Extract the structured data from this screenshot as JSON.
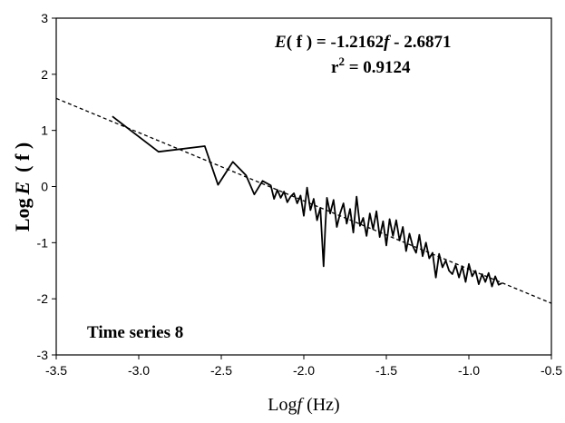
{
  "chart_data": {
    "type": "line",
    "xlim": [
      -3.5,
      -0.5
    ],
    "ylim": [
      -3,
      3
    ],
    "x_ticks": [
      -3.5,
      -3.0,
      -2.5,
      -2.0,
      -1.5,
      -1.0,
      -0.5
    ],
    "x_tick_labels": [
      "-3.5",
      "-3.0",
      "-2.5",
      "-2.0",
      "-1.5",
      "-1.0",
      "-0.5"
    ],
    "y_ticks": [
      -3,
      -2,
      -1,
      0,
      1,
      2,
      3
    ],
    "y_tick_labels": [
      "-3",
      "-2",
      "-1",
      "0",
      "1",
      "2",
      "3"
    ],
    "ylabel": {
      "prefix": "Log",
      "var": "E",
      "paren": "( f )"
    },
    "xlabel": {
      "prefix": "Log",
      "var": "f",
      "suffix": " (Hz)"
    },
    "annotation": {
      "equation": {
        "lhs_var": "E",
        "lhs_arg": "( f )",
        "rhs": " = -1.2162",
        "rhs_var": "f",
        "rhs_tail": "  - 2.6871"
      },
      "r2": {
        "base": "r",
        "exp": "2",
        "value": " = 0.9124"
      }
    },
    "panel_label": "Time series 8",
    "series": [
      {
        "style": "solid",
        "x": [
          -3.16,
          -2.88,
          -2.6,
          -2.52,
          -2.43,
          -2.35,
          -2.3,
          -2.25,
          -2.2,
          -2.18,
          -2.16,
          -2.14,
          -2.12,
          -2.1,
          -2.08,
          -2.06,
          -2.04,
          -2.02,
          -2.0,
          -1.98,
          -1.96,
          -1.94,
          -1.92,
          -1.9,
          -1.88,
          -1.87,
          -1.86,
          -1.84,
          -1.82,
          -1.8,
          -1.78,
          -1.76,
          -1.74,
          -1.72,
          -1.7,
          -1.68,
          -1.66,
          -1.64,
          -1.62,
          -1.6,
          -1.58,
          -1.56,
          -1.54,
          -1.52,
          -1.5,
          -1.48,
          -1.46,
          -1.44,
          -1.42,
          -1.4,
          -1.38,
          -1.36,
          -1.34,
          -1.32,
          -1.3,
          -1.28,
          -1.26,
          -1.24,
          -1.22,
          -1.2,
          -1.18,
          -1.16,
          -1.14,
          -1.12,
          -1.1,
          -1.08,
          -1.06,
          -1.04,
          -1.02,
          -1.0,
          -0.98,
          -0.96,
          -0.94,
          -0.92,
          -0.9,
          -0.88,
          -0.86,
          -0.84,
          -0.82,
          -0.8
        ],
        "y": [
          1.25,
          0.62,
          0.72,
          0.03,
          0.44,
          0.2,
          -0.14,
          0.1,
          0.02,
          -0.22,
          -0.06,
          -0.2,
          -0.09,
          -0.28,
          -0.18,
          -0.12,
          -0.3,
          -0.16,
          -0.52,
          -0.02,
          -0.42,
          -0.22,
          -0.6,
          -0.38,
          -1.42,
          -0.72,
          -0.2,
          -0.48,
          -0.24,
          -0.72,
          -0.48,
          -0.3,
          -0.66,
          -0.4,
          -0.82,
          -0.18,
          -0.7,
          -0.56,
          -0.88,
          -0.48,
          -0.76,
          -0.44,
          -0.9,
          -0.62,
          -1.05,
          -0.58,
          -0.88,
          -0.6,
          -0.96,
          -0.72,
          -1.15,
          -0.84,
          -1.06,
          -1.18,
          -0.86,
          -1.24,
          -1.0,
          -1.28,
          -1.18,
          -1.62,
          -1.2,
          -1.44,
          -1.32,
          -1.5,
          -1.56,
          -1.4,
          -1.62,
          -1.42,
          -1.7,
          -1.38,
          -1.6,
          -1.5,
          -1.74,
          -1.56,
          -1.7,
          -1.54,
          -1.78,
          -1.6,
          -1.75,
          -1.72
        ]
      },
      {
        "style": "dashed",
        "x": [
          -3.5,
          -0.5
        ],
        "y": [
          1.57,
          -2.08
        ]
      }
    ]
  }
}
